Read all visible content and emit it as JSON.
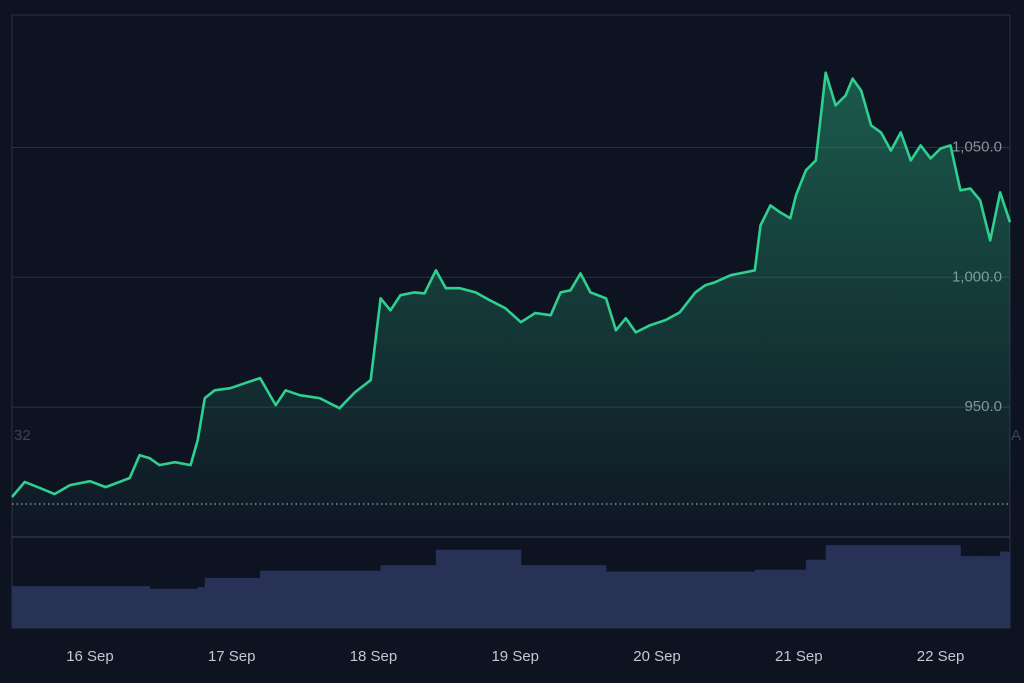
{
  "chart_data": {
    "type": "area",
    "x": [
      15.45,
      15.54,
      15.65,
      15.75,
      15.86,
      16.0,
      16.11,
      16.21,
      16.28,
      16.35,
      16.42,
      16.49,
      16.6,
      16.71,
      16.76,
      16.81,
      16.88,
      16.99,
      17.09,
      17.2,
      17.31,
      17.38,
      17.48,
      17.62,
      17.76,
      17.87,
      17.98,
      18.05,
      18.12,
      18.19,
      18.29,
      18.36,
      18.44,
      18.51,
      18.61,
      18.72,
      18.82,
      18.93,
      19.04,
      19.14,
      19.25,
      19.32,
      19.39,
      19.46,
      19.53,
      19.64,
      19.71,
      19.78,
      19.85,
      19.95,
      20.06,
      20.16,
      20.27,
      20.34,
      20.41,
      20.52,
      20.62,
      20.69,
      20.73,
      20.8,
      20.87,
      20.94,
      20.98,
      21.05,
      21.12,
      21.19,
      21.26,
      21.33,
      21.38,
      21.44,
      21.51,
      21.58,
      21.65,
      21.72,
      21.79,
      21.86,
      21.93,
      22.0,
      22.07,
      22.14,
      22.21,
      22.28,
      22.35,
      22.42,
      22.49
    ],
    "series": [
      {
        "color": "#2fd08f",
        "values": [
          915.4,
          921.2,
          918.8,
          916.5,
          920,
          921.5,
          919.2,
          921.2,
          922.7,
          931.5,
          930.4,
          927.7,
          928.8,
          927.7,
          937.3,
          953.5,
          956.5,
          957.3,
          959.2,
          961.2,
          950.8,
          956.5,
          954.6,
          953.5,
          949.6,
          955.8,
          960.4,
          991.9,
          987.3,
          993.1,
          994.2,
          993.8,
          1002.7,
          995.8,
          995.8,
          994.2,
          991.2,
          988.1,
          982.7,
          986.2,
          985.4,
          994.2,
          995,
          1001.5,
          994.2,
          991.9,
          979.6,
          984.2,
          978.8,
          981.5,
          983.5,
          986.5,
          994.2,
          996.9,
          998.1,
          1000.8,
          1001.9,
          1002.7,
          1020,
          1027.7,
          1025,
          1022.7,
          1031.5,
          1041.2,
          1045,
          1078.8,
          1066.2,
          1070,
          1076.5,
          1071.9,
          1058.5,
          1055.8,
          1048.8,
          1055.8,
          1045,
          1050.8,
          1045.8,
          1049.6,
          1050.8,
          1033.5,
          1034.2,
          1029.6,
          1014.2,
          1032.7,
          1021.2
        ]
      },
      {
        "type": "bar",
        "axis": "y2",
        "color": "#283257",
        "values": [
          46,
          46,
          46,
          46,
          46,
          46,
          46,
          46,
          46,
          46,
          43,
          43,
          43,
          43,
          45,
          55,
          55,
          55,
          55,
          63,
          63,
          63,
          63,
          63,
          63,
          63,
          63,
          69,
          69,
          69,
          69,
          69,
          86,
          86,
          86,
          86,
          86,
          86,
          69,
          69,
          69,
          69,
          69,
          69,
          69,
          62,
          62,
          62,
          62,
          62,
          62,
          62,
          62,
          62,
          62,
          62,
          62,
          64,
          64,
          64,
          64,
          64,
          64,
          75,
          75,
          91,
          91,
          91,
          91,
          91,
          91,
          91,
          91,
          91,
          91,
          91,
          91,
          91,
          91,
          79,
          79,
          79,
          79,
          84,
          84
        ]
      }
    ],
    "xlim": [
      15.45,
      22.49
    ],
    "xticks": [
      {
        "value": 16,
        "label": "16 Sep"
      },
      {
        "value": 17,
        "label": "17 Sep"
      },
      {
        "value": 18,
        "label": "18 Sep"
      },
      {
        "value": 19,
        "label": "19 Sep"
      },
      {
        "value": 20,
        "label": "20 Sep"
      },
      {
        "value": 21,
        "label": "21 Sep"
      },
      {
        "value": 22,
        "label": "22 Sep"
      }
    ],
    "ylim": [
      900,
      1101
    ],
    "yticks": [
      {
        "value": 950,
        "label": "950.0"
      },
      {
        "value": 1000,
        "label": "1,000.0"
      },
      {
        "value": 1050,
        "label": "1,050.0"
      }
    ],
    "y2lim": [
      0,
      100
    ],
    "grid": true,
    "reference_line": 912.7,
    "annotations": [
      "32",
      "A"
    ]
  }
}
